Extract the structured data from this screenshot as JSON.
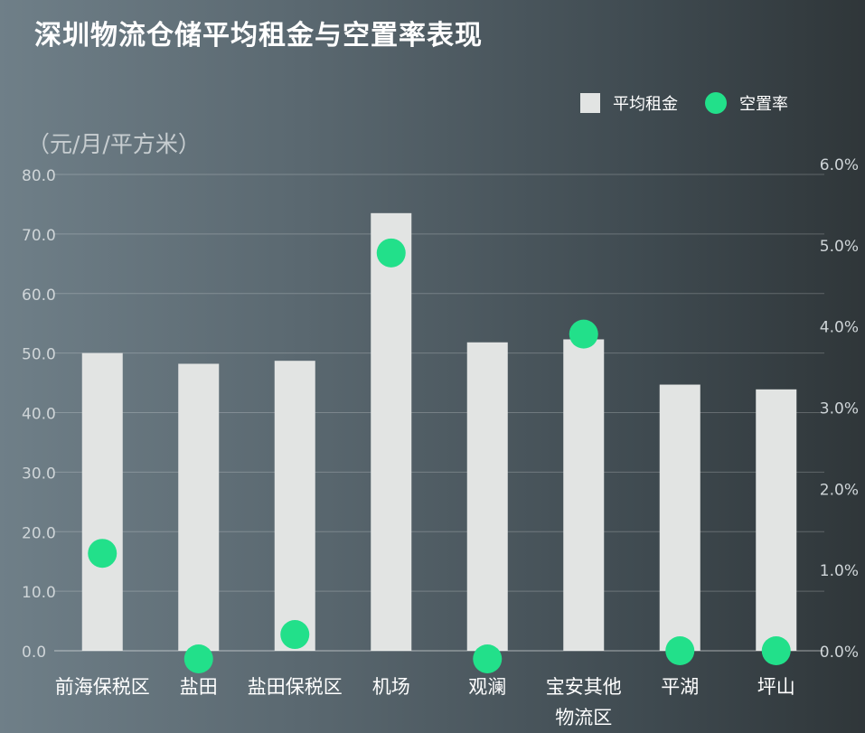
{
  "chart_data": {
    "type": "bar",
    "title": "深圳物流仓储平均租金与空置率表现",
    "ylabel": "（元/月/平方米）",
    "categories": [
      "前海保税区",
      "盐田",
      "盐田保税区",
      "机场",
      "观澜",
      "宝安其他物流区",
      "平湖",
      "坪山"
    ],
    "category_lines": [
      [
        "前海保税区"
      ],
      [
        "盐田"
      ],
      [
        "盐田保税区"
      ],
      [
        "机场"
      ],
      [
        "观澜"
      ],
      [
        "宝安其他",
        "物流区"
      ],
      [
        "平湖"
      ],
      [
        "坪山"
      ]
    ],
    "series": [
      {
        "name": "平均租金",
        "type": "bar",
        "axis": "left",
        "color": "#e2e4e3",
        "values": [
          50.0,
          48.2,
          48.7,
          73.5,
          51.8,
          52.3,
          44.7,
          43.9
        ]
      },
      {
        "name": "空置率",
        "type": "scatter",
        "axis": "right",
        "color": "#22e08a",
        "values": [
          1.2,
          -0.1,
          0.2,
          4.9,
          -0.1,
          3.9,
          0.0,
          0.0
        ]
      }
    ],
    "ylim": [
      0,
      80
    ],
    "y_ticks": [
      "0.0",
      "10.0",
      "20.0",
      "30.0",
      "40.0",
      "50.0",
      "60.0",
      "70.0",
      "80.0"
    ],
    "y2lim": [
      0,
      6
    ],
    "y2_ticks": [
      "0.0%",
      "1.0%",
      "2.0%",
      "3.0%",
      "4.0%",
      "5.0%",
      "6.0%"
    ],
    "grid": true,
    "legend": "top-right"
  }
}
